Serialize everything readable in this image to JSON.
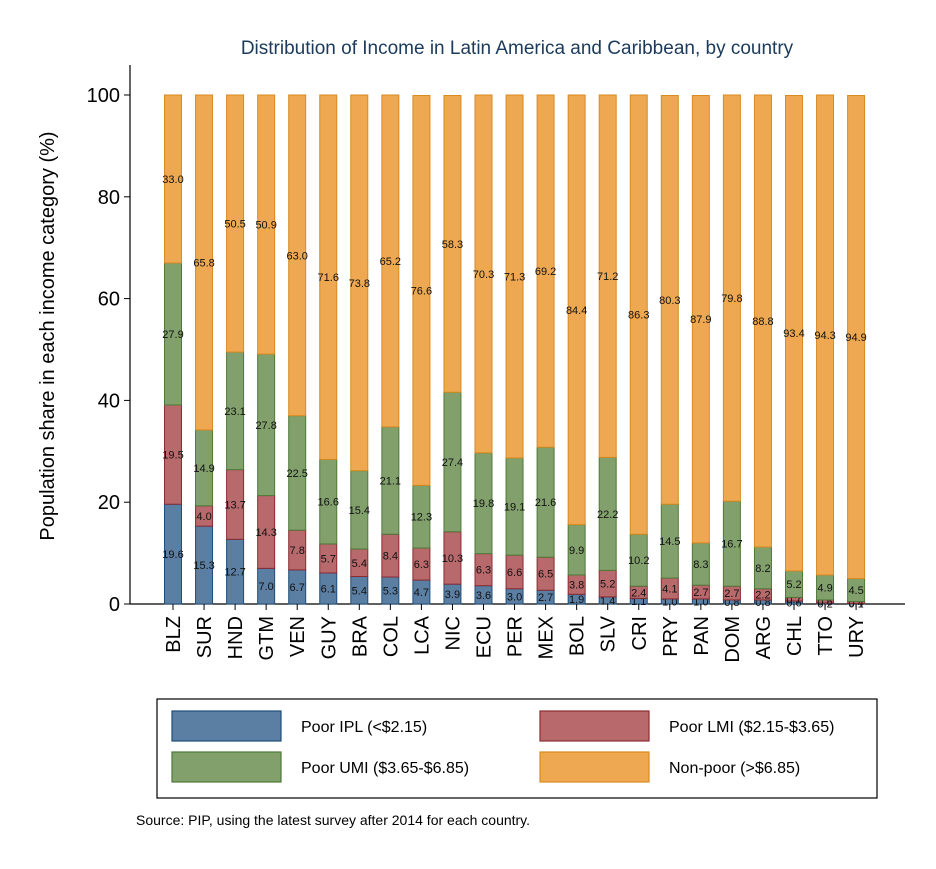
{
  "chart_data": {
    "type": "bar",
    "stacked": true,
    "title": "Distribution of Income in Latin America and Caribbean, by country",
    "ylabel": "Population share in each income category (%)",
    "xlabel": "",
    "ylim": [
      0,
      100
    ],
    "yticks": [
      "0",
      "20",
      "40",
      "60",
      "80",
      "100"
    ],
    "grid": false,
    "legend_position": "bottom",
    "categories": [
      "BLZ",
      "SUR",
      "HND",
      "GTM",
      "VEN",
      "GUY",
      "BRA",
      "COL",
      "LCA",
      "NIC",
      "ECU",
      "PER",
      "MEX",
      "BOL",
      "SLV",
      "CRI",
      "PRY",
      "PAN",
      "DOM",
      "ARG",
      "CHL",
      "TTO",
      "URY"
    ],
    "series": [
      {
        "name": "Poor IPL (<$2.15)",
        "color": "#5b7fa3",
        "edge": "#1f4e79",
        "values": [
          19.6,
          15.3,
          12.7,
          7.0,
          6.7,
          6.1,
          5.4,
          5.3,
          4.7,
          3.9,
          3.6,
          3.0,
          2.7,
          1.9,
          1.4,
          1.1,
          1.0,
          1.0,
          0.8,
          0.8,
          0.6,
          0.2,
          0.1
        ]
      },
      {
        "name": "Poor LMI ($2.15-$3.65)",
        "color": "#b8696c",
        "edge": "#8c2b31",
        "values": [
          19.5,
          4.0,
          13.7,
          14.3,
          7.8,
          5.7,
          5.4,
          8.4,
          6.3,
          10.3,
          6.3,
          6.6,
          6.5,
          3.8,
          5.2,
          2.4,
          4.1,
          2.7,
          2.7,
          2.2,
          0.7,
          0.6,
          0.4
        ]
      },
      {
        "name": "Poor UMI ($3.65-$6.85)",
        "color": "#82a06c",
        "edge": "#4e7a38",
        "values": [
          27.9,
          14.9,
          23.1,
          27.8,
          22.5,
          16.6,
          15.4,
          21.1,
          12.3,
          27.4,
          19.8,
          19.1,
          21.6,
          9.9,
          22.2,
          10.2,
          14.5,
          8.3,
          16.7,
          8.2,
          5.2,
          4.9,
          4.5
        ]
      },
      {
        "name": "Non-poor (>$6.85)",
        "color": "#eea851",
        "edge": "#d98a20",
        "values": [
          33.0,
          65.8,
          50.5,
          50.9,
          63.0,
          71.6,
          73.8,
          65.2,
          76.6,
          58.3,
          70.3,
          71.3,
          69.2,
          84.4,
          71.2,
          86.3,
          80.3,
          87.9,
          79.8,
          88.8,
          93.4,
          94.3,
          94.9
        ]
      }
    ],
    "data_labels": [
      [
        "19.6",
        "15.3",
        "12.7",
        "7.0",
        "6.7",
        "6.1",
        "5.4",
        "5.3",
        "4.7",
        "3.9",
        "3.6",
        "3.0",
        "2.7",
        "1.9",
        "1.4",
        "1.1",
        "1.0",
        "1.0",
        "0.8",
        "0.8",
        "0.6",
        "0.2",
        "0.1"
      ],
      [
        "19.5",
        "4.0",
        "13.7",
        "14.3",
        "7.8",
        "5.7",
        "5.4",
        "8.4",
        "6.3",
        "10.3",
        "6.3",
        "6.6",
        "6.5",
        "3.8",
        "5.2",
        "2.4",
        "4.1",
        "2.7",
        "2.7",
        "2.2",
        "0.7",
        "0.6",
        "0.4"
      ],
      [
        "27.9",
        "14.9",
        "23.1",
        "27.8",
        "22.5",
        "16.6",
        "15.4",
        "21.1",
        "12.3",
        "27.4",
        "19.8",
        "19.1",
        "21.6",
        "9.9",
        "22.2",
        "10.2",
        "14.5",
        "8.3",
        "16.7",
        "8.2",
        "5.2",
        "4.9",
        "4.5"
      ],
      [
        "33.0",
        "65.8",
        "50.5",
        "50.9",
        "63.0",
        "71.6",
        "73.8",
        "65.2",
        "76.6",
        "58.3",
        "70.3",
        "71.3",
        "69.2",
        "84.4",
        "71.2",
        "86.3",
        "80.3",
        "87.9",
        "79.8",
        "88.8",
        "93.4",
        "94.3",
        "94.9"
      ]
    ],
    "source_note": "Source: PIP, using the latest survey after 2014 for each country."
  }
}
